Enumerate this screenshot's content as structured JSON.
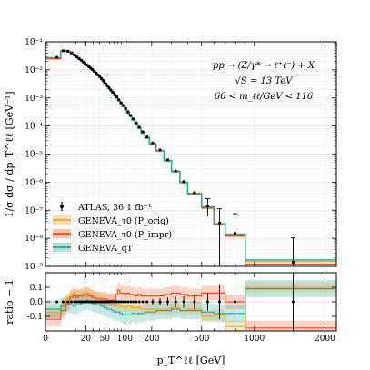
{
  "chart_data": [
    {
      "type": "line",
      "panel": "main",
      "ylabel": "1/σ  dσ / dp_T^ℓℓ  [GeV⁻¹]",
      "yscale": "log",
      "ylim": [
        1e-09,
        0.1
      ],
      "xscale": "power-compressed",
      "xlim": [
        0,
        2200
      ],
      "annotations": [
        "pp → (Z/γ* → ℓ⁺ℓ⁻) + X",
        "√S = 13 TeV",
        "66 < m_ℓℓ/GeV < 116"
      ],
      "legend_position": "bottom-left",
      "legend": [
        {
          "name": "ATLAS, 36.1 fb⁻¹",
          "color": "#000000",
          "marker": "errorbar"
        },
        {
          "name": "GENEVA_τ0 (P_orig)",
          "color": "#f5a623"
        },
        {
          "name": "GENEVA_τ0 (P_impr)",
          "color": "#f4511e"
        },
        {
          "name": "GENEVA_qT",
          "color": "#26a69a"
        }
      ],
      "bin_edges": [
        0,
        2,
        4,
        6,
        8,
        10,
        12,
        14,
        16,
        18,
        20,
        22.5,
        25,
        27.5,
        30,
        33,
        36,
        39,
        42,
        45,
        48,
        51,
        54,
        57,
        61,
        65,
        70,
        75,
        80,
        86,
        92,
        99,
        106,
        114,
        122,
        132,
        143,
        155,
        170,
        190,
        220,
        260,
        300,
        350,
        400,
        500,
        600,
        700,
        900,
        2500
      ],
      "series": [
        {
          "name": "ATLAS, 36.1 fb⁻¹",
          "values": [
            0.028,
            0.048,
            0.046,
            0.04,
            0.034,
            0.029,
            0.025,
            0.022,
            0.019,
            0.017,
            0.015,
            0.013,
            0.0115,
            0.0102,
            0.0089,
            0.0077,
            0.0066,
            0.0057,
            0.0049,
            0.0042,
            0.0036,
            0.0031,
            0.0027,
            0.0023,
            0.0019,
            0.0016,
            0.0013,
            0.0011,
            0.00086,
            0.00068,
            0.00054,
            0.00042,
            0.00032,
            0.00024,
            0.00018,
            0.00013,
            9.1e-05,
            6.2e-05,
            4.1e-05,
            2.5e-05,
            1.4e-05,
            6.2e-06,
            2.5e-06,
            1.05e-06,
            4.2e-07,
            1.4e-07,
            3.5e-08,
            1.5e-08,
            1.4e-09
          ],
          "errors_down": [
            0,
            0,
            0,
            0,
            0,
            0,
            0,
            0,
            0,
            0,
            0,
            0,
            0,
            0,
            0,
            0,
            0,
            0,
            0,
            0,
            0,
            0,
            0,
            0,
            0,
            0,
            0,
            0,
            0,
            0,
            0,
            0,
            0,
            0,
            0,
            0,
            0,
            0,
            0,
            0,
            0,
            0,
            0,
            0,
            0,
            8e-08,
            3.4e-08,
            1.49e-08,
            1.3e-09
          ],
          "errors_up": [
            0,
            0,
            0,
            0,
            0,
            0,
            0,
            0,
            0,
            0,
            0,
            0,
            0,
            0,
            0,
            0,
            0,
            0,
            0,
            0,
            0,
            0,
            0,
            0,
            0,
            0,
            0,
            0,
            0,
            0,
            0,
            0,
            0,
            0,
            0,
            0,
            0,
            0,
            0,
            0,
            0,
            0,
            0,
            0,
            0,
            1.2e-07,
            8e-08,
            6e-08,
            9e-09
          ]
        },
        {
          "name": "GENEVA_τ0 (P_orig)",
          "values": [
            0.026,
            0.047,
            0.047,
            0.042,
            0.036,
            0.03,
            0.026,
            0.023,
            0.02,
            0.018,
            0.016,
            0.0137,
            0.0121,
            0.0106,
            0.0092,
            0.0079,
            0.0068,
            0.0058,
            0.005,
            0.0043,
            0.0037,
            0.0032,
            0.0027,
            0.0023,
            0.0019,
            0.0016,
            0.00131,
            0.00107,
            0.00084,
            0.00066,
            0.00052,
            0.0004,
            0.00031,
            0.00023,
            0.000173,
            0.000125,
            8.7e-05,
            5.9e-05,
            3.9e-05,
            2.4e-05,
            1.33e-05,
            5.9e-06,
            2.4e-06,
            9.9e-07,
            4e-07,
            1.25e-07,
            3.2e-08,
            1.25e-08,
            1.5e-09
          ]
        },
        {
          "name": "GENEVA_τ0 (P_impr)",
          "values": [
            0.025,
            0.046,
            0.047,
            0.042,
            0.035,
            0.03,
            0.026,
            0.023,
            0.02,
            0.018,
            0.0157,
            0.0135,
            0.0119,
            0.0105,
            0.0091,
            0.0078,
            0.0067,
            0.0058,
            0.005,
            0.0043,
            0.0037,
            0.0032,
            0.0027,
            0.0023,
            0.0019,
            0.0016,
            0.0013,
            0.00106,
            0.00084,
            0.00066,
            0.00052,
            0.0004,
            0.00031,
            0.00023,
            0.000172,
            0.000124,
            8.6e-05,
            5.8e-05,
            3.8e-05,
            2.3e-05,
            1.3e-05,
            5.8e-06,
            2.4e-06,
            9.6e-07,
            3.8e-07,
            1.2e-07,
            3e-08,
            1.2e-08,
            1.2e-09
          ]
        },
        {
          "name": "GENEVA_qT",
          "values": [
            0.027,
            0.049,
            0.047,
            0.041,
            0.035,
            0.03,
            0.026,
            0.022,
            0.019,
            0.017,
            0.015,
            0.013,
            0.0114,
            0.01,
            0.0087,
            0.0075,
            0.0064,
            0.0055,
            0.0047,
            0.004,
            0.0034,
            0.0029,
            0.0025,
            0.0021,
            0.0018,
            0.0015,
            0.0012,
            0.00099,
            0.00079,
            0.00062,
            0.00049,
            0.00038,
            0.00029,
            0.00022,
            0.000165,
            0.00012,
            8.4e-05,
            5.7e-05,
            3.8e-05,
            2.3e-05,
            1.31e-05,
            5.8e-06,
            2.4e-06,
            9.8e-07,
            3.9e-07,
            1.3e-07,
            3.3e-08,
            1.4e-08,
            1.7e-09
          ]
        }
      ],
      "y_tick_labels": [
        "10⁻⁹",
        "10⁻⁸",
        "10⁻⁷",
        "10⁻⁶",
        "10⁻⁵",
        "10⁻⁴",
        "10⁻³",
        "10⁻²",
        "10⁻¹"
      ],
      "grid": true
    },
    {
      "type": "line",
      "panel": "ratio",
      "ylabel": "ratio − 1",
      "xlabel": "p_T^ℓℓ  [GeV]",
      "ylim": [
        -0.2,
        0.2
      ],
      "x_tick_values": [
        0,
        20,
        50,
        100,
        200,
        500,
        1000,
        2000
      ],
      "y_tick_values": [
        -0.1,
        0.0,
        0.1
      ],
      "series": [
        {
          "name": "GENEVA_τ0 (P_orig)",
          "values": [
            -0.07,
            -0.02,
            0.02,
            0.05,
            0.06,
            0.05,
            0.04,
            0.05,
            0.06,
            0.06,
            0.06,
            0.06,
            0.05,
            0.04,
            0.03,
            0.03,
            0.03,
            0.02,
            0.02,
            0.02,
            0.02,
            0.02,
            0.01,
            0.01,
            0.01,
            0.01,
            0.01,
            -0.03,
            -0.02,
            -0.03,
            -0.03,
            -0.04,
            -0.03,
            -0.03,
            -0.04,
            -0.04,
            -0.04,
            -0.05,
            -0.05,
            -0.05,
            -0.05,
            -0.05,
            -0.04,
            -0.06,
            -0.05,
            -0.1,
            -0.09,
            -0.17,
            0.1
          ],
          "band": 0.04
        },
        {
          "name": "GENEVA_τ0 (P_impr)",
          "values": [
            -0.12,
            -0.06,
            -0.01,
            0.03,
            0.04,
            0.03,
            0.04,
            0.04,
            0.04,
            0.05,
            0.05,
            0.04,
            0.04,
            0.03,
            0.03,
            0.02,
            0.02,
            0.02,
            0.02,
            0.02,
            0.02,
            0.02,
            0.01,
            0.01,
            0.01,
            0.01,
            0.01,
            0.05,
            0.08,
            0.06,
            0.06,
            0.05,
            0.06,
            0.05,
            0.05,
            0.04,
            0.05,
            0.04,
            0.04,
            0.04,
            0.04,
            0.05,
            0.06,
            0.05,
            0.04,
            0.06,
            0.06,
            0.0,
            -0.18
          ],
          "band": 0.05
        },
        {
          "name": "GENEVA_qT",
          "values": [
            -0.05,
            -0.03,
            -0.02,
            -0.02,
            -0.03,
            -0.02,
            -0.02,
            -0.01,
            0.0,
            0.0,
            0.01,
            0.0,
            0.0,
            -0.01,
            -0.01,
            -0.02,
            -0.02,
            -0.02,
            -0.03,
            -0.03,
            -0.04,
            -0.04,
            -0.05,
            -0.05,
            -0.05,
            -0.06,
            -0.07,
            -0.07,
            -0.07,
            -0.08,
            -0.09,
            -0.09,
            -0.09,
            -0.09,
            -0.08,
            -0.09,
            -0.08,
            -0.08,
            -0.07,
            -0.07,
            -0.06,
            -0.06,
            -0.05,
            -0.06,
            -0.06,
            -0.07,
            -0.08,
            -0.08,
            0.09
          ],
          "band": 0.06
        },
        {
          "name": "ATLAS, 36.1 fb⁻¹",
          "values": [
            0,
            0,
            0,
            0,
            0,
            0,
            0,
            0,
            0,
            0,
            0,
            0,
            0,
            0,
            0,
            0,
            0,
            0,
            0,
            0,
            0,
            0,
            0,
            0,
            0,
            0,
            0,
            0,
            0,
            0,
            0,
            0,
            0,
            0,
            0,
            0,
            0,
            0,
            0,
            0,
            0,
            0,
            0,
            0,
            0,
            0,
            0,
            0,
            0
          ],
          "errors": [
            0.008,
            0.006,
            0.005,
            0.005,
            0.005,
            0.005,
            0.005,
            0.005,
            0.005,
            0.005,
            0.005,
            0.005,
            0.005,
            0.005,
            0.005,
            0.005,
            0.005,
            0.005,
            0.005,
            0.005,
            0.005,
            0.005,
            0.006,
            0.006,
            0.006,
            0.006,
            0.007,
            0.007,
            0.007,
            0.008,
            0.008,
            0.008,
            0.009,
            0.009,
            0.01,
            0.01,
            0.012,
            0.013,
            0.015,
            0.02,
            0.025,
            0.03,
            0.035,
            0.04,
            0.05,
            0.06,
            0.12,
            0.3,
            0.5
          ]
        }
      ]
    }
  ]
}
